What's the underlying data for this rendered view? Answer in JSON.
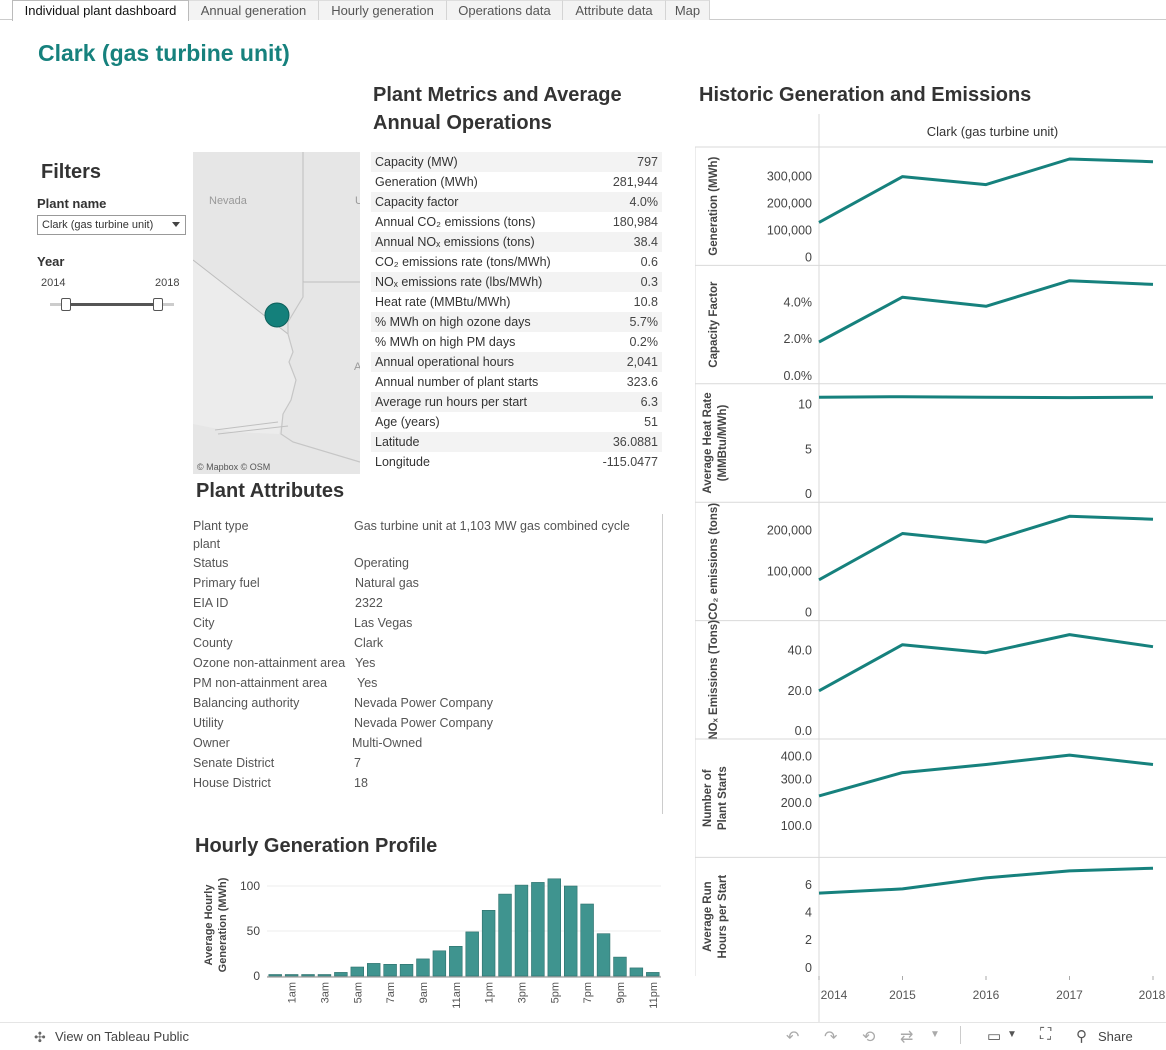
{
  "tabs": [
    {
      "label": "Individual plant dashboard",
      "active": true
    },
    {
      "label": "Annual generation"
    },
    {
      "label": "Hourly generation"
    },
    {
      "label": "Operations data"
    },
    {
      "label": "Attribute data"
    },
    {
      "label": "Map"
    }
  ],
  "page_title": "Clark (gas turbine unit)",
  "filters": {
    "title": "Filters",
    "plant_label": "Plant name",
    "plant_value": "Clark (gas turbine unit)",
    "year_label": "Year",
    "year_min": "2014",
    "year_max": "2018"
  },
  "map": {
    "state_label": "Nevada",
    "state_label_partial": "U",
    "label_partial": "A",
    "attribution": "© Mapbox  © OSM",
    "marker_color": "#14807b"
  },
  "metrics": {
    "title": "Plant Metrics and Average Annual Operations",
    "rows": [
      {
        "label": "Capacity (MW)",
        "value": "797"
      },
      {
        "label": "Generation (MWh)",
        "value": "281,944"
      },
      {
        "label": "Capacity factor",
        "value": "4.0%"
      },
      {
        "label": "Annual CO₂ emissions (tons)",
        "value": "180,984"
      },
      {
        "label": "Annual NOₓ emissions (tons)",
        "value": "38.4"
      },
      {
        "label": "CO₂ emissions rate (tons/MWh)",
        "value": "0.6"
      },
      {
        "label": "NOₓ emissions rate (lbs/MWh)",
        "value": "0.3"
      },
      {
        "label": "Heat rate (MMBtu/MWh)",
        "value": "10.8"
      },
      {
        "label": "% MWh on high ozone days",
        "value": "5.7%"
      },
      {
        "label": "% MWh on high PM days",
        "value": "0.2%"
      },
      {
        "label": "Annual operational hours",
        "value": "2,041"
      },
      {
        "label": "Annual number of plant starts",
        "value": "323.6"
      },
      {
        "label": "Average run hours per start",
        "value": "6.3"
      },
      {
        "label": "Age (years)",
        "value": "51"
      },
      {
        "label": "Latitude",
        "value": "36.0881"
      },
      {
        "label": "Longitude",
        "value": "-115.0477"
      }
    ]
  },
  "attributes": {
    "title": "Plant Attributes",
    "rows": [
      {
        "label": "Plant type",
        "label2": "plant",
        "value": "Gas turbine unit at 1,103 MW gas combined cycle"
      },
      {
        "label": "Status",
        "value": "Operating"
      },
      {
        "label": "Primary fuel",
        "value": "Natural gas"
      },
      {
        "label": "EIA ID",
        "value": "2322"
      },
      {
        "label": "City",
        "value": "Las Vegas"
      },
      {
        "label": "County",
        "value": "Clark"
      },
      {
        "label": "Ozone non-attainment area",
        "value": "Yes"
      },
      {
        "label": "PM non-attainment area",
        "value": "Yes"
      },
      {
        "label": "Balancing authority",
        "value": "Nevada Power Company"
      },
      {
        "label": "Utility",
        "value": "Nevada Power Company"
      },
      {
        "label": "Owner",
        "value": "Multi-Owned"
      },
      {
        "label": "Senate District",
        "value": "7"
      },
      {
        "label": "House District",
        "value": "18"
      }
    ]
  },
  "hourly": {
    "title": "Hourly Generation Profile",
    "ylabel_line1": "Average Hourly",
    "ylabel_line2": "Generation (MWh)"
  },
  "historic": {
    "title": "Historic Generation and Emissions",
    "column_header": "Clark (gas turbine unit)"
  },
  "footer": {
    "view_label": "View on Tableau Public",
    "share_label": "Share"
  },
  "colors": {
    "teal": "#16817d",
    "bar": "#3f948f"
  },
  "chart_data": [
    {
      "type": "bar",
      "title": "Hourly Generation Profile",
      "ylabel": "Average Hourly Generation (MWh)",
      "ylim": [
        0,
        110
      ],
      "yticks": [
        0,
        50,
        100
      ],
      "categories": [
        "12am",
        "1am",
        "2am",
        "3am",
        "4am",
        "5am",
        "6am",
        "7am",
        "8am",
        "9am",
        "10am",
        "11am",
        "12pm",
        "1pm",
        "2pm",
        "3pm",
        "4pm",
        "5pm",
        "6pm",
        "7pm",
        "8pm",
        "9pm",
        "10pm",
        "11pm"
      ],
      "tick_labels": [
        "1am",
        "3am",
        "5am",
        "7am",
        "9am",
        "11am",
        "1pm",
        "3pm",
        "5pm",
        "7pm",
        "9pm",
        "11pm"
      ],
      "values": [
        1,
        0,
        0,
        0,
        4,
        10,
        14,
        13,
        13,
        19,
        28,
        33,
        49,
        73,
        91,
        101,
        104,
        108,
        100,
        80,
        47,
        21,
        9,
        4
      ]
    },
    {
      "type": "line",
      "x": [
        2014,
        2015,
        2016,
        2017,
        2018
      ],
      "panels": [
        {
          "ylabel": "Generation (MWh)",
          "ylim": [
            0,
            380000
          ],
          "yticks": [
            "0",
            "100,000",
            "200,000",
            "300,000"
          ],
          "tick_values": [
            0,
            100000,
            200000,
            300000
          ],
          "values": [
            130000,
            300000,
            270000,
            365000,
            355000
          ]
        },
        {
          "ylabel": "Capacity Factor",
          "ylim": [
            0,
            0.056
          ],
          "yticks": [
            "0.0%",
            "2.0%",
            "4.0%"
          ],
          "tick_values": [
            0,
            0.02,
            0.04
          ],
          "values": [
            0.0185,
            0.043,
            0.038,
            0.052,
            0.05
          ]
        },
        {
          "ylabel": "Average Heat Rate (MMBtu/MWh)",
          "ylim": [
            0,
            11.4
          ],
          "yticks": [
            "0",
            "5",
            "10"
          ],
          "tick_values": [
            0,
            5,
            10
          ],
          "values": [
            10.8,
            10.85,
            10.8,
            10.75,
            10.8
          ]
        },
        {
          "ylabel": "CO₂ emissions (tons)",
          "ylim": [
            0,
            250000
          ],
          "yticks": [
            "0",
            "100,000",
            "200,000"
          ],
          "tick_values": [
            0,
            100000,
            200000
          ],
          "values": [
            80000,
            193000,
            172000,
            235000,
            228000
          ]
        },
        {
          "ylabel": "NOₓ Emissions (Tons)",
          "ylim": [
            0,
            51
          ],
          "yticks": [
            "0.0",
            "20.0",
            "40.0"
          ],
          "tick_values": [
            0,
            20,
            40
          ],
          "values": [
            20,
            43,
            39,
            48,
            42
          ]
        },
        {
          "ylabel": "Number of Plant Starts",
          "ylim": [
            0,
            440
          ],
          "yticks": [
            "100.0",
            "200.0",
            "300.0",
            "400.0"
          ],
          "tick_values": [
            100,
            200,
            300,
            400
          ],
          "values": [
            230,
            330,
            365,
            405,
            365
          ]
        },
        {
          "ylabel": "Average Run Hours per Start",
          "ylim": [
            0,
            7.4
          ],
          "yticks": [
            "0",
            "2",
            "4",
            "6"
          ],
          "tick_values": [
            0,
            2,
            4,
            6
          ],
          "values": [
            5.4,
            5.7,
            6.5,
            7.0,
            7.2
          ]
        }
      ]
    }
  ]
}
